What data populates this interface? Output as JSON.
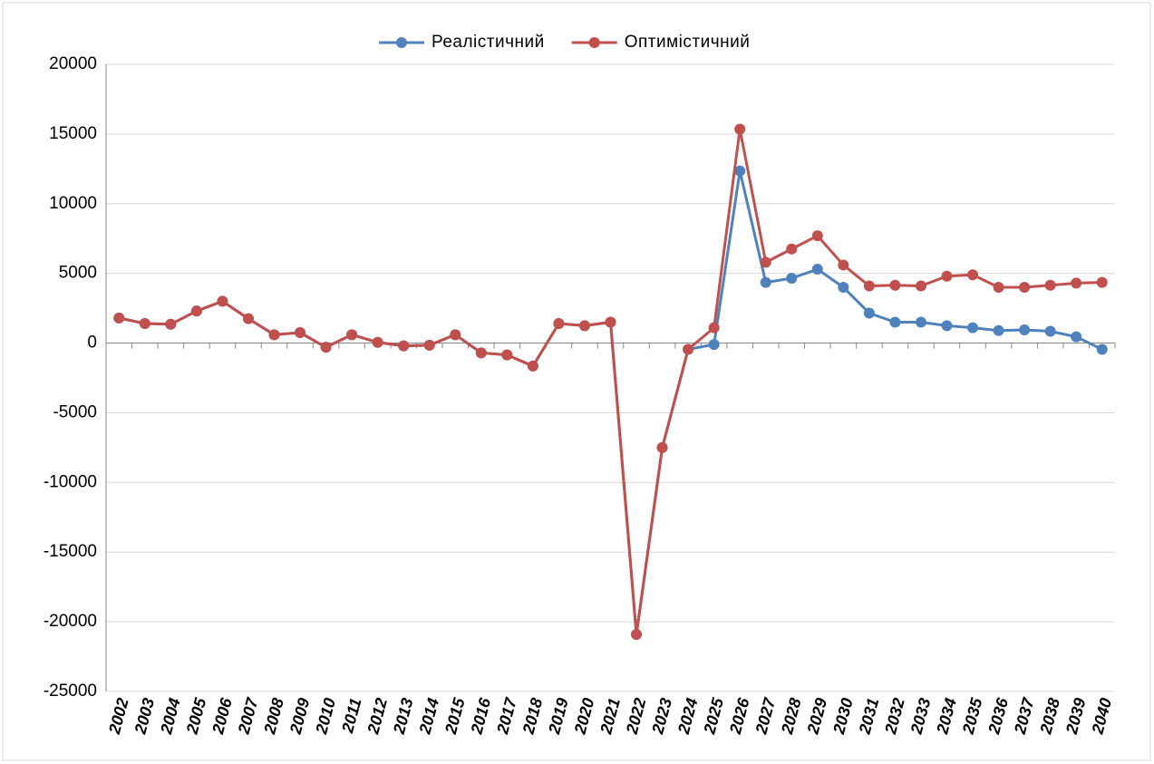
{
  "chart_data": {
    "type": "line",
    "categories": [
      "2002",
      "2003",
      "2004",
      "2005",
      "2006",
      "2007",
      "2008",
      "2009",
      "2010",
      "2011",
      "2012",
      "2013",
      "2014",
      "2015",
      "2016",
      "2017",
      "2018",
      "2019",
      "2020",
      "2021",
      "2022",
      "2023",
      "2024",
      "2025",
      "2026",
      "2027",
      "2028",
      "2029",
      "2030",
      "2031",
      "2032",
      "2033",
      "2034",
      "2035",
      "2036",
      "2037",
      "2038",
      "2039",
      "2040"
    ],
    "series": [
      {
        "name": "Реалістичний",
        "color": "#4f81bd",
        "values": [
          1800,
          1400,
          1350,
          2300,
          3000,
          1750,
          600,
          750,
          -300,
          600,
          50,
          -200,
          -150,
          600,
          -700,
          -850,
          -1650,
          1400,
          1250,
          1500,
          -20900,
          -7500,
          -450,
          -100,
          12350,
          4350,
          4650,
          5300,
          4000,
          2150,
          1500,
          1500,
          1250,
          1100,
          900,
          950,
          850,
          450,
          -450
        ]
      },
      {
        "name": "Оптимістичний",
        "color": "#c0504d",
        "values": [
          1800,
          1400,
          1350,
          2300,
          3000,
          1750,
          600,
          750,
          -300,
          600,
          50,
          -200,
          -150,
          600,
          -700,
          -850,
          -1650,
          1400,
          1250,
          1500,
          -20900,
          -7500,
          -450,
          1100,
          15350,
          5800,
          6750,
          7700,
          5600,
          4100,
          4150,
          4100,
          4800,
          4900,
          4000,
          4000,
          4150,
          4300,
          4350
        ]
      }
    ],
    "ylim": [
      -25000,
      20000
    ],
    "yticks": [
      -25000,
      -20000,
      -15000,
      -10000,
      -5000,
      0,
      5000,
      10000,
      15000,
      20000
    ],
    "grid": true,
    "legend": "top"
  }
}
